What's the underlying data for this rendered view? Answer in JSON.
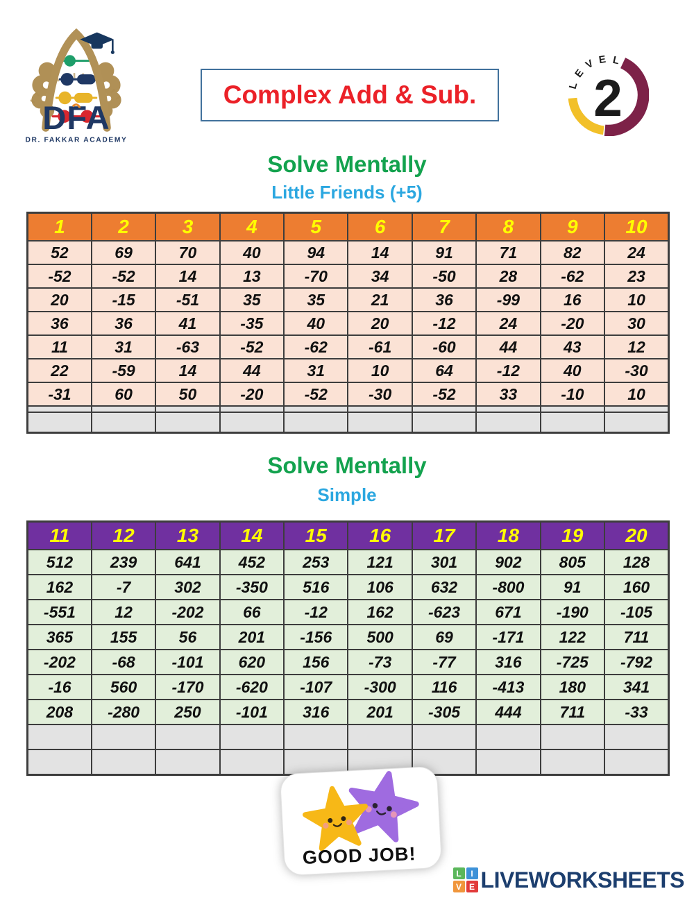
{
  "header": {
    "logo": {
      "brand": "DFA",
      "subtitle": "DR. FAKKAR ACADEMY",
      "navy": "#1F3864",
      "gold": "#B19157"
    },
    "title": {
      "text": "Complex Add & Sub.",
      "color": "#EB2128",
      "border_color": "#41719C"
    },
    "level_badge": {
      "word": "LEVEL",
      "letters": [
        "L",
        "E",
        "V",
        "E",
        "L"
      ],
      "number": "2",
      "ring_maroon": "#7D2248",
      "ring_gold": "#F2C029"
    }
  },
  "sections": {
    "first": {
      "heading": "Solve Mentally",
      "subheading": "Little Friends (+5)",
      "heading_color": "#13A24E",
      "subheading_color": "#2BA7E0"
    },
    "second": {
      "heading": "Solve Mentally",
      "subheading": "Simple",
      "heading_color": "#13A24E",
      "subheading_color": "#2BA7E0"
    }
  },
  "tables": {
    "little_friends": {
      "header_bg": "#ED7D31",
      "body_bg": "#FBE2D5",
      "answer_bg": "#E3E3E3",
      "columns": [
        {
          "label": "1",
          "values": [
            "52",
            "-52",
            "20",
            "36",
            "11",
            "22",
            "-31"
          ]
        },
        {
          "label": "2",
          "values": [
            "69",
            "-52",
            "-15",
            "36",
            "31",
            "-59",
            "60"
          ]
        },
        {
          "label": "3",
          "values": [
            "70",
            "14",
            "-51",
            "41",
            "-63",
            "14",
            "50"
          ]
        },
        {
          "label": "4",
          "values": [
            "40",
            "13",
            "35",
            "-35",
            "-52",
            "44",
            "-20"
          ]
        },
        {
          "label": "5",
          "values": [
            "94",
            "-70",
            "35",
            "40",
            "-62",
            "31",
            "-52"
          ]
        },
        {
          "label": "6",
          "values": [
            "14",
            "34",
            "21",
            "20",
            "-61",
            "10",
            "-30"
          ]
        },
        {
          "label": "7",
          "values": [
            "91",
            "-50",
            "36",
            "-12",
            "-60",
            "64",
            "-52"
          ]
        },
        {
          "label": "8",
          "values": [
            "71",
            "28",
            "-99",
            "24",
            "44",
            "-12",
            "33"
          ]
        },
        {
          "label": "9",
          "values": [
            "82",
            "-62",
            "16",
            "-20",
            "43",
            "40",
            "-10"
          ]
        },
        {
          "label": "10",
          "values": [
            "24",
            "23",
            "10",
            "30",
            "12",
            "-30",
            "10"
          ]
        }
      ]
    },
    "simple": {
      "header_bg": "#7030A0",
      "body_bg": "#E2EFDA",
      "answer_bg": "#E3E3E3",
      "columns": [
        {
          "label": "11",
          "values": [
            "512",
            "162",
            "-551",
            "365",
            "-202",
            "-16",
            "208"
          ]
        },
        {
          "label": "12",
          "values": [
            "239",
            "-7",
            "12",
            "155",
            "-68",
            "560",
            "-280"
          ]
        },
        {
          "label": "13",
          "values": [
            "641",
            "302",
            "-202",
            "56",
            "-101",
            "-170",
            "250"
          ]
        },
        {
          "label": "14",
          "values": [
            "452",
            "-350",
            "66",
            "201",
            "620",
            "-620",
            "-101"
          ]
        },
        {
          "label": "15",
          "values": [
            "253",
            "516",
            "-12",
            "-156",
            "156",
            "-107",
            "316"
          ]
        },
        {
          "label": "16",
          "values": [
            "121",
            "106",
            "162",
            "500",
            "-73",
            "-300",
            "201"
          ]
        },
        {
          "label": "17",
          "values": [
            "301",
            "632",
            "-623",
            "69",
            "-77",
            "116",
            "-305"
          ]
        },
        {
          "label": "18",
          "values": [
            "902",
            "-800",
            "671",
            "-171",
            "316",
            "-413",
            "444"
          ]
        },
        {
          "label": "19",
          "values": [
            "805",
            "91",
            "-190",
            "122",
            "-725",
            "180",
            "711"
          ]
        },
        {
          "label": "20",
          "values": [
            "128",
            "160",
            "-105",
            "711",
            "-792",
            "341",
            "-33"
          ]
        }
      ]
    }
  },
  "sticker": {
    "text": "GOOD JOB!",
    "star_left_color": "#F7B817",
    "star_right_color": "#9F6BE0"
  },
  "footer": {
    "brand": "LIVEWORKSHEETS",
    "color": "#1C3E6E",
    "grid": [
      {
        "letter": "L",
        "color": "#5BB75B"
      },
      {
        "letter": "I",
        "color": "#3E92D8"
      },
      {
        "letter": "V",
        "color": "#F0963C"
      },
      {
        "letter": "E",
        "color": "#E23B3B"
      }
    ]
  }
}
